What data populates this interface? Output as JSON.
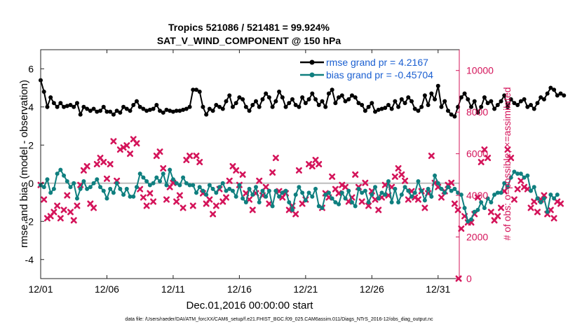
{
  "chart_data": {
    "type": "line",
    "title": "Tropics 521086 / 521481 = 99.924%",
    "subtitle": "SAT_V_WIND_COMPONENT @ 150 hPa",
    "xlabel": "Dec.01,2016 00:00:00 start",
    "ylabel": "rmse and bias (model - observation)",
    "y2label": "# of obs: o=possible; ×=assimilated",
    "footer": "data file: /Users/raeder/DAI/ATM_forcXX/CAM6_setup/f.e21.FHIST_BGC.f09_025.CAM6assim.011/Diags_NTrS_2016-12/obs_diag_output.nc",
    "xlim": [
      0,
      31.6
    ],
    "ylim": [
      -5,
      7
    ],
    "y2lim": [
      0,
      11000
    ],
    "x_ticks": [
      0,
      5,
      10,
      15,
      20,
      25,
      30
    ],
    "x_tick_labels": [
      "12/01",
      "12/06",
      "12/11",
      "12/16",
      "12/21",
      "12/26",
      "12/31"
    ],
    "y_ticks": [
      -4,
      -2,
      0,
      2,
      4,
      6
    ],
    "y_tick_labels": [
      "-4",
      "-2",
      "0",
      "2",
      "4",
      "6"
    ],
    "y2_ticks": [
      0,
      2000,
      4000,
      6000,
      8000,
      10000
    ],
    "y2_tick_labels": [
      "0",
      "2000",
      "4000",
      "6000",
      "8000",
      "10000"
    ],
    "legend_position": "top-right",
    "grid": false,
    "x_step_days": 0.25,
    "colors": {
      "rmse": "#000000",
      "bias": "#0f7f7f",
      "obs": "#d4145a",
      "zero": "#bdbdbd",
      "legend_text": "#1a5fd1"
    },
    "series": [
      {
        "name": "rmse grand pr = 4.2167",
        "color": "#000000",
        "values": [
          5.4,
          4.8,
          4.0,
          4.5,
          4.2,
          4.0,
          4.2,
          4.0,
          4.05,
          4.1,
          4.0,
          4.2,
          3.6,
          4.0,
          3.9,
          3.8,
          3.9,
          3.75,
          3.8,
          4.0,
          3.75,
          3.75,
          3.6,
          3.8,
          3.7,
          4.0,
          3.9,
          3.8,
          4.1,
          4.3,
          4.0,
          3.9,
          3.8,
          3.85,
          3.9,
          4.1,
          3.8,
          3.7,
          3.85,
          3.8,
          3.75,
          3.8,
          3.8,
          3.85,
          3.9,
          4.0,
          4.9,
          4.9,
          4.8,
          4.0,
          3.6,
          3.9,
          3.8,
          4.1,
          4.0,
          3.9,
          4.3,
          4.6,
          4.0,
          4.2,
          4.5,
          4.4,
          4.0,
          3.8,
          4.1,
          4.3,
          4.0,
          4.4,
          4.7,
          4.5,
          4.0,
          4.3,
          4.8,
          4.5,
          4.0,
          4.2,
          4.4,
          4.1,
          4.0,
          4.5,
          4.2,
          4.4,
          4.7,
          4.4,
          4.1,
          4.3,
          4.0,
          4.7,
          4.9,
          4.2,
          4.5,
          4.6,
          4.3,
          4.4,
          4.6,
          4.5,
          4.2,
          4.1,
          3.8,
          4.0,
          4.2,
          3.75,
          3.85,
          3.9,
          3.95,
          4.1,
          3.9,
          4.3,
          4.0,
          4.4,
          4.2,
          4.5,
          4.3,
          3.9,
          3.8,
          4.0,
          4.6,
          4.1,
          4.7,
          4.4,
          5.1,
          4.0,
          4.3,
          3.8,
          3.6,
          3.5,
          4.0,
          4.5,
          4.7,
          4.4,
          4.0,
          4.3,
          3.7,
          4.0,
          4.5,
          4.2,
          4.3,
          3.9,
          4.1,
          4.3,
          4.6,
          4.0,
          4.4,
          4.2,
          4.1,
          4.3,
          4.4,
          4.0,
          4.1,
          3.9,
          4.2,
          4.5,
          4.4,
          4.7,
          5.0,
          4.9,
          4.6,
          4.7,
          4.6
        ]
      },
      {
        "name": "bias grand pr = -0.45704",
        "color": "#0f7f7f",
        "values": [
          -0.1,
          -0.2,
          0.2,
          -0.5,
          -0.3,
          0.5,
          0.7,
          0.4,
          0.1,
          -0.2,
          0.0,
          -0.8,
          -0.3,
          0.1,
          -0.3,
          -0.2,
          0.0,
          0.2,
          -0.2,
          -0.4,
          -0.8,
          -0.3,
          -0.5,
          0.0,
          -0.3,
          -0.6,
          -0.3,
          -0.7,
          -0.7,
          -0.2,
          0.5,
          0.3,
          0.1,
          -0.1,
          0.0,
          0.3,
          0.1,
          0.5,
          -0.1,
          0.7,
          0.2,
          0.0,
          -0.1,
          0.3,
          0.0,
          -0.1,
          -0.1,
          -0.5,
          -0.2,
          -0.4,
          -0.6,
          -0.1,
          -0.3,
          -0.5,
          -0.2,
          0.0,
          -0.4,
          -0.3,
          -0.4,
          -0.7,
          -0.1,
          -0.8,
          -1.0,
          -0.3,
          -0.6,
          -0.2,
          -1.0,
          -0.4,
          -0.7,
          -0.4,
          -1.2,
          -0.4,
          -0.7,
          -0.5,
          -0.4,
          -1.0,
          -1.4,
          -0.6,
          -0.2,
          -0.5,
          -0.9,
          -0.5,
          -0.7,
          -0.3,
          -1.2,
          -1.3,
          -0.6,
          -0.5,
          -0.8,
          -1.0,
          -1.1,
          -0.5,
          -0.8,
          -0.4,
          -1.0,
          -1.2,
          -0.3,
          -0.5,
          -0.4,
          -1.0,
          -0.6,
          -0.2,
          -0.8,
          -0.5,
          -0.6,
          0.1,
          -1.0,
          -0.3,
          -1.0,
          -0.6,
          -0.2,
          -0.4,
          -0.7,
          -0.5,
          0.1,
          -0.4,
          -0.9,
          -0.3,
          -0.7,
          0.4,
          0.0,
          -0.3,
          -0.5,
          -0.2,
          -0.4,
          -0.3,
          -0.5,
          -0.6,
          -1.3,
          -2.0,
          -1.9,
          -1.5,
          -1.4,
          -1.0,
          -1.3,
          -0.8,
          -1.0,
          -0.6,
          -0.5,
          -0.5,
          0.0,
          -0.2,
          0.3,
          0.6,
          0.5,
          0.5,
          0.3,
          0.4,
          -0.4,
          -0.2,
          -0.8,
          -1.0,
          -0.8,
          -1.5,
          -0.6,
          -0.8,
          -0.6
        ]
      },
      {
        "name": "# of obs assimilated",
        "color": "#d4145a",
        "values": [
          4500,
          3800,
          2900,
          3000,
          3200,
          3500,
          2900,
          3300,
          4000,
          3200,
          2800,
          3500,
          4500,
          5200,
          5400,
          3600,
          3400,
          5500,
          5800,
          5600,
          4800,
          5500,
          6600,
          4700,
          6200,
          6300,
          6400,
          6000,
          6700,
          6500,
          4300,
          3900,
          3500,
          4100,
          3700,
          5900,
          6100,
          5300,
          3800,
          4400,
          4600,
          3700,
          4000,
          3400,
          5700,
          5900,
          3500,
          5900,
          5600,
          4100,
          3600,
          3800,
          3100,
          3500,
          4300,
          3700,
          3900,
          4700,
          5400,
          5200,
          4500,
          5000,
          4100,
          3800,
          3300,
          4100,
          4700,
          4000,
          4400,
          3600,
          5100,
          5800,
          4200,
          3900,
          4100,
          3300,
          3500,
          3100,
          5200,
          3600,
          3800,
          5500,
          5400,
          5700,
          5500,
          3400,
          4100,
          3900,
          4900,
          4300,
          4100,
          4500,
          4400,
          3700,
          3900,
          5000,
          4400,
          3700,
          4600,
          3500,
          4200,
          3800,
          3300,
          3900,
          4500,
          4000,
          4400,
          4900,
          5300,
          5000,
          4700,
          3800,
          4200,
          3900,
          3800,
          4200,
          3400,
          4100,
          5900,
          4600,
          4400,
          3900,
          4200,
          4500,
          4600,
          3600,
          3300,
          2400,
          3000,
          2700,
          2700,
          3100,
          3900,
          5600,
          6200,
          5800,
          3200,
          2800,
          3000,
          3400,
          4200,
          6200,
          5800,
          3800,
          4300,
          4700,
          4400,
          4300,
          3400,
          3700,
          3200,
          3800,
          4000,
          3100,
          3300,
          2900,
          3700,
          3600
        ]
      }
    ],
    "extra_points": [
      {
        "label": "0",
        "x": 31.55,
        "y2": 0
      }
    ]
  }
}
